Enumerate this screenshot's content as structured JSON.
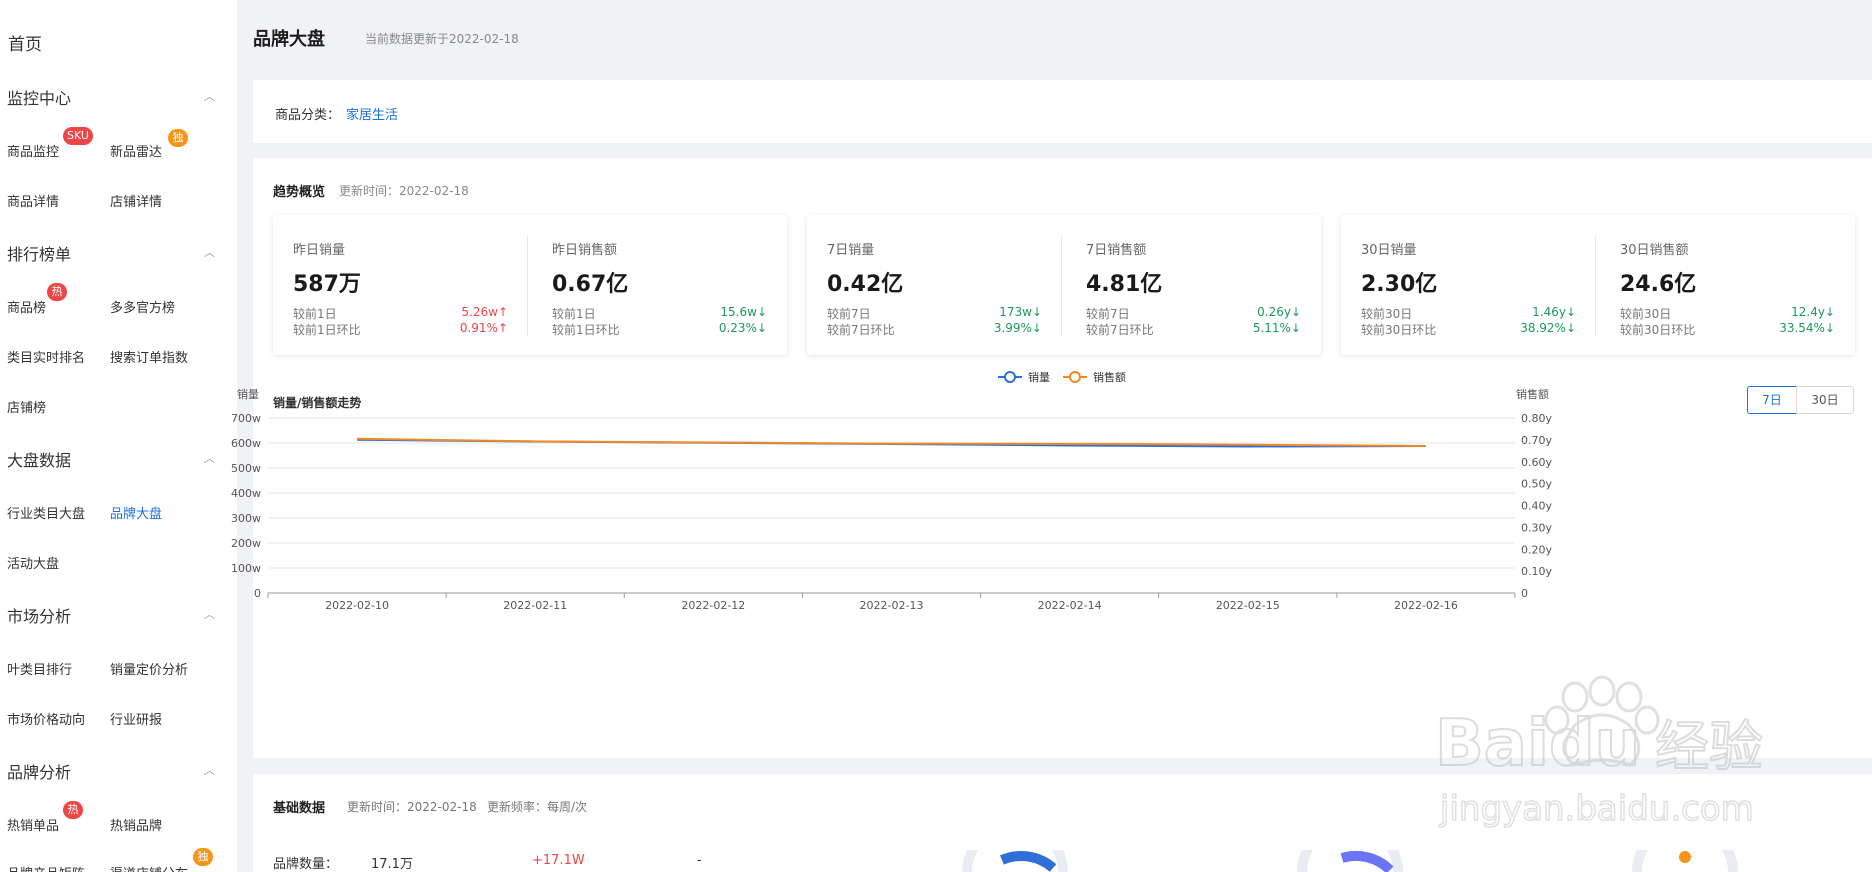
{
  "sidebar": {
    "home": "首页",
    "sections": [
      {
        "title": "监控中心",
        "items": [
          {
            "label": "商品监控",
            "badge": "SKU",
            "badge_color": "#f04545"
          },
          {
            "label": "新品雷达",
            "badge": "独",
            "badge_color": "#f6951a"
          },
          {
            "label": "商品详情"
          },
          {
            "label": "店铺详情"
          }
        ]
      },
      {
        "title": "排行榜单",
        "items": [
          {
            "label": "商品榜",
            "badge": "热",
            "badge_color": "#f04545"
          },
          {
            "label": "多多官方榜"
          },
          {
            "label": "类目实时排名"
          },
          {
            "label": "搜索订单指数"
          },
          {
            "label": "店铺榜"
          }
        ]
      },
      {
        "title": "大盘数据",
        "items": [
          {
            "label": "行业类目大盘"
          },
          {
            "label": "品牌大盘",
            "active": true
          },
          {
            "label": "活动大盘"
          }
        ]
      },
      {
        "title": "市场分析",
        "items": [
          {
            "label": "叶类目排行"
          },
          {
            "label": "销量定价分析"
          },
          {
            "label": "市场价格动向"
          },
          {
            "label": "行业研报"
          }
        ]
      },
      {
        "title": "品牌分析",
        "items": [
          {
            "label": "热销单品",
            "badge": "热",
            "badge_color": "#f04545"
          },
          {
            "label": "热销品牌"
          },
          {
            "label": "品牌产品矩阵"
          },
          {
            "label": "渠道店铺分布",
            "badge": "独",
            "badge_color": "#f6951a"
          }
        ]
      }
    ]
  },
  "header": {
    "title": "品牌大盘",
    "updated": "当前数据更新于2022-02-18"
  },
  "category": {
    "label": "商品分类：",
    "value": "家居生活"
  },
  "trend": {
    "title": "趋势概览",
    "time": "更新时间：2022-02-18",
    "cards": [
      [
        {
          "label": "昨日销量",
          "value": "587万",
          "cmp1_label": "较前1日",
          "cmp1_value": "5.26w↑",
          "cmp1_dir": "up",
          "cmp2_label": "较前1日环比",
          "cmp2_value": "0.91%↑",
          "cmp2_dir": "up"
        },
        {
          "label": "昨日销售额",
          "value": "0.67亿",
          "cmp1_label": "较前1日",
          "cmp1_value": "15.6w↓",
          "cmp1_dir": "down",
          "cmp2_label": "较前1日环比",
          "cmp2_value": "0.23%↓",
          "cmp2_dir": "down"
        }
      ],
      [
        {
          "label": "7日销量",
          "value": "0.42亿",
          "cmp1_label": "较前7日",
          "cmp1_value": "173w↓",
          "cmp1_dir": "down",
          "cmp2_label": "较前7日环比",
          "cmp2_value": "3.99%↓",
          "cmp2_dir": "down"
        },
        {
          "label": "7日销售额",
          "value": "4.81亿",
          "cmp1_label": "较前7日",
          "cmp1_value": "0.26y↓",
          "cmp1_dir": "down",
          "cmp2_label": "较前7日环比",
          "cmp2_value": "5.11%↓",
          "cmp2_dir": "down"
        }
      ],
      [
        {
          "label": "30日销量",
          "value": "2.30亿",
          "cmp1_label": "较前30日",
          "cmp1_value": "1.46y↓",
          "cmp1_dir": "down",
          "cmp2_label": "较前30日环比",
          "cmp2_value": "38.92%↓",
          "cmp2_dir": "down"
        },
        {
          "label": "30日销售额",
          "value": "24.6亿",
          "cmp1_label": "较前30日",
          "cmp1_value": "12.4y↓",
          "cmp1_dir": "down",
          "cmp2_label": "较前30日环比",
          "cmp2_value": "33.54%↓",
          "cmp2_dir": "down"
        }
      ]
    ]
  },
  "chart_section": {
    "title": "销量/销售额走势",
    "ranges": [
      "7日",
      "30日"
    ],
    "active_range": "7日"
  },
  "chart_data": {
    "type": "line",
    "x": [
      "2022-02-10",
      "2022-02-11",
      "2022-02-12",
      "2022-02-13",
      "2022-02-14",
      "2022-02-15",
      "2022-02-16"
    ],
    "series": [
      {
        "name": "销量",
        "axis": "left",
        "color": "#2f6fd9",
        "values": [
          613,
          606,
          601,
          596,
          590,
          586,
          588
        ]
      },
      {
        "name": "销售额",
        "axis": "right",
        "color": "#f08a24",
        "values": [
          0.705,
          0.693,
          0.688,
          0.683,
          0.682,
          0.678,
          0.672
        ]
      }
    ],
    "ylabel_left": "销量",
    "ylabel_right": "销售额",
    "yticks_left": [
      "0",
      "100w",
      "200w",
      "300w",
      "400w",
      "500w",
      "600w",
      "700w"
    ],
    "yticks_right": [
      "0",
      "0.10y",
      "0.20y",
      "0.30y",
      "0.40y",
      "0.50y",
      "0.60y",
      "0.70y",
      "0.80y"
    ],
    "ylim_left": [
      0,
      700
    ],
    "ylim_right": [
      0,
      0.8
    ],
    "legend_position": "top-center",
    "grid": true
  },
  "base": {
    "title": "基础数据",
    "time": "更新时间：2022-02-18",
    "freq": "更新频率：每周/次",
    "brand_count_label": "品牌数量：",
    "brand_count_value": "17.1万",
    "brand_count_delta": "+17.1W",
    "brand_count_other": "-"
  },
  "watermark": {
    "text1": "Baidu",
    "text2": "经验",
    "url": "jingyan.baidu.com"
  }
}
